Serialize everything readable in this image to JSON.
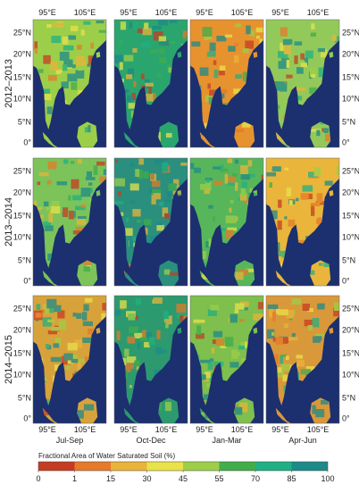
{
  "figure": {
    "rows": [
      {
        "label": "2012–2013"
      },
      {
        "label": "2013–2014"
      },
      {
        "label": "2014–2015"
      }
    ],
    "columns": [
      {
        "label": "Jul-Sep"
      },
      {
        "label": "Oct-Dec"
      },
      {
        "label": "Jan-Mar"
      },
      {
        "label": "Apr-Jun"
      }
    ],
    "lon_ticks": [
      "95°E",
      "105°E"
    ],
    "lat_ticks": [
      "25°N",
      "20°N",
      "15°N",
      "10°N",
      "5°N",
      "0°"
    ],
    "colorbar": {
      "title": "Fractional Area of Water Saturated Soil (%)",
      "ticks": [
        "0",
        "1",
        "15",
        "30",
        "45",
        "55",
        "70",
        "85",
        "100"
      ],
      "colors": [
        "#c43c23",
        "#e57a2a",
        "#eab33a",
        "#e9e24a",
        "#9dce4a",
        "#41ad4b",
        "#20b083",
        "#1e8a8a",
        "#1c2f6e"
      ]
    },
    "ocean_color": "#1c2f6e",
    "land_tone": [
      [
        "#9dce4a",
        "#2aa56e",
        "#e6932f",
        "#93c95a"
      ],
      [
        "#7cc35a",
        "#2b8f7d",
        "#58b65a",
        "#e9b63b"
      ],
      [
        "#d8a23b",
        "#2c9a6e",
        "#7ebf4d",
        "#d9983a"
      ]
    ]
  }
}
